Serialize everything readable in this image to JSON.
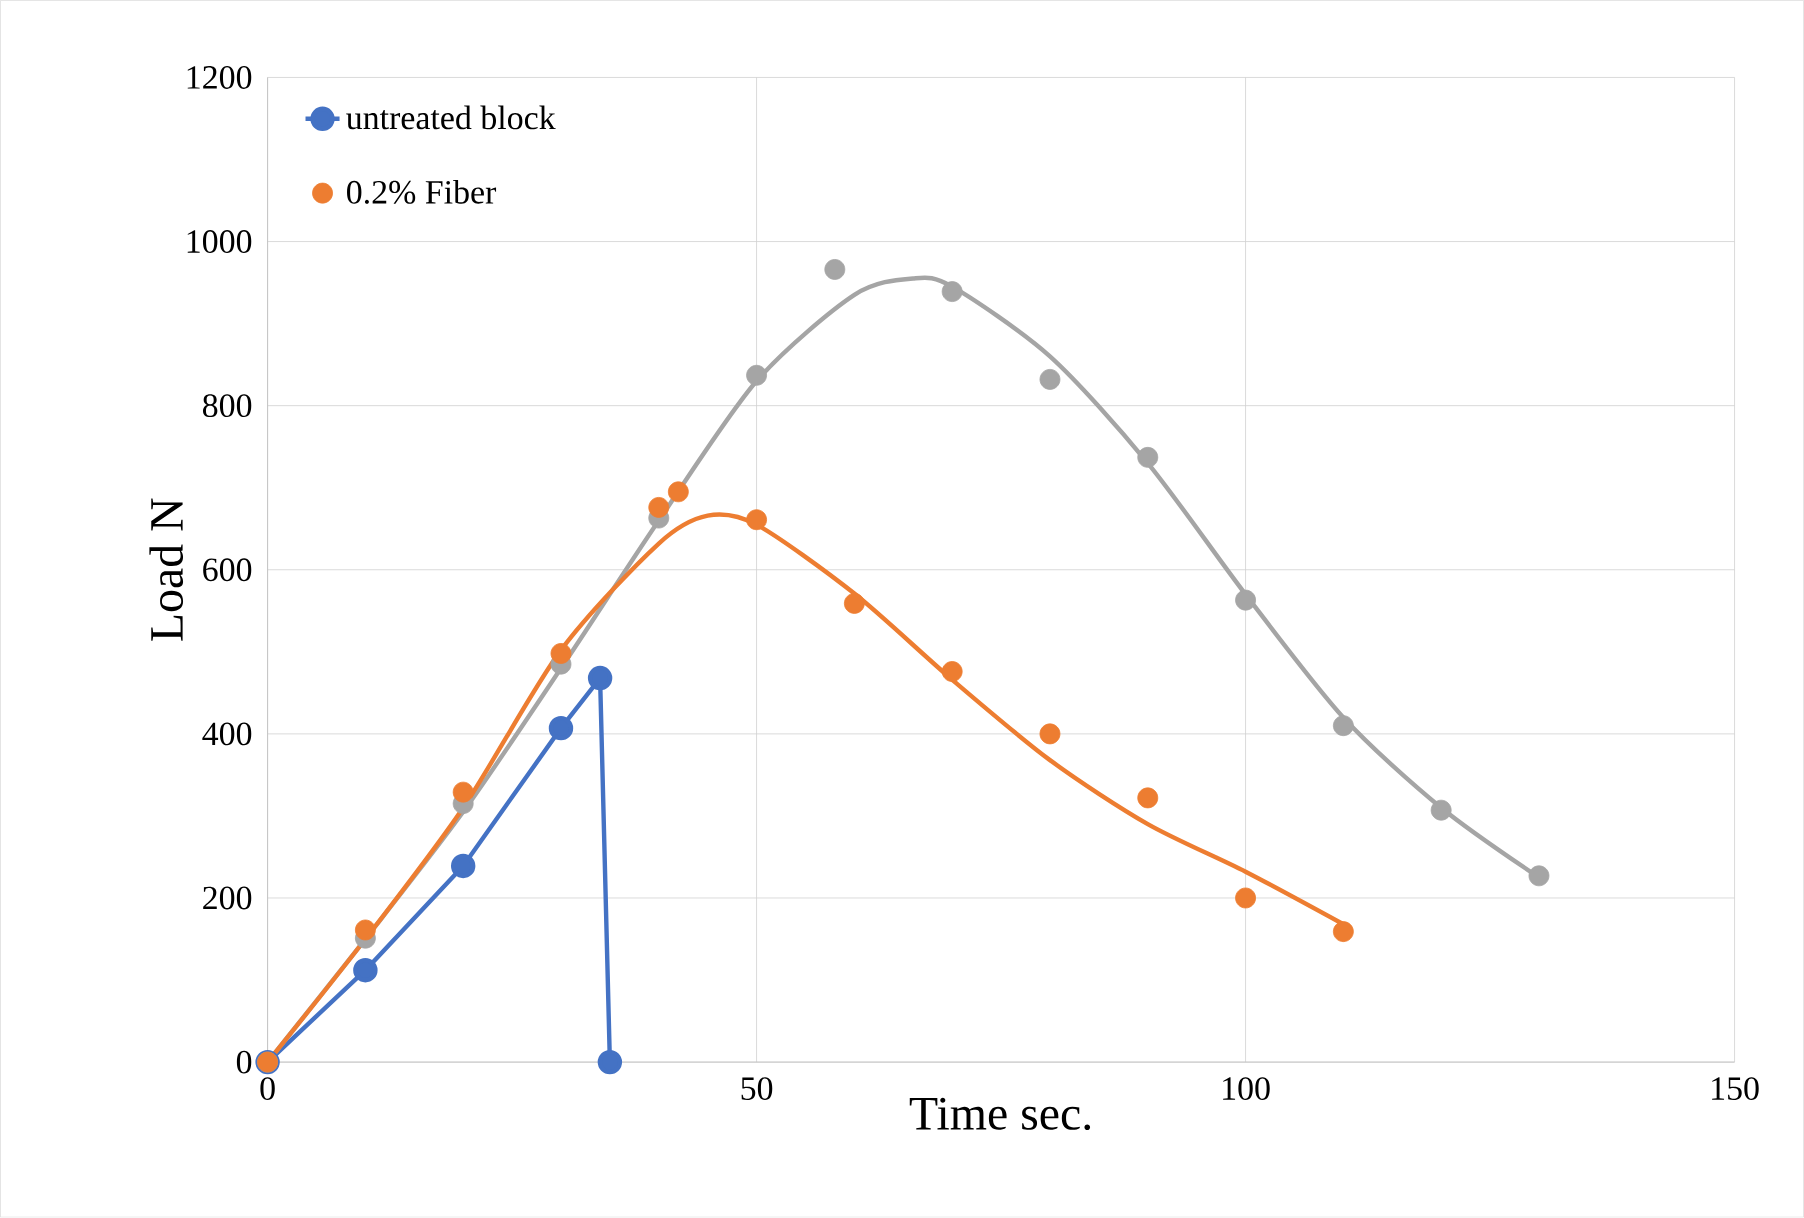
{
  "chart_data": {
    "type": "line",
    "xlabel": "Time sec.",
    "ylabel": "Load N",
    "xlim": [
      0,
      150
    ],
    "xticks": [
      0,
      50,
      100,
      150
    ],
    "ylim": [
      0,
      1200
    ],
    "yticks": [
      0,
      200,
      400,
      600,
      800,
      1000,
      1200
    ],
    "grid": true,
    "legend": "top left",
    "marker": "circle",
    "series": [
      {
        "type": "line",
        "name": "untreated block",
        "color": "#4472c4",
        "x": [
          0,
          10,
          20,
          30,
          34,
          35
        ],
        "values": [
          0,
          112,
          239,
          407,
          468,
          0
        ]
      },
      {
        "type": "scatter",
        "color": "#a5a5a5",
        "x": [
          0,
          10,
          20,
          30,
          40,
          50,
          58,
          70,
          80,
          90,
          100,
          110,
          120,
          130
        ],
        "values": [
          0,
          151,
          315,
          485,
          663,
          837,
          966,
          939,
          832,
          737,
          563,
          410,
          307,
          227
        ]
      },
      {
        "type": "line",
        "marker": "none",
        "color": "#a5a5a5",
        "x": [
          0,
          10,
          20,
          30,
          40,
          50,
          60,
          66,
          70,
          80,
          90,
          100,
          110,
          120,
          130
        ],
        "values": [
          0,
          150,
          305,
          480,
          660,
          830,
          935,
          955,
          945,
          860,
          730,
          570,
          420,
          310,
          225
        ]
      },
      {
        "type": "scatter",
        "name": "0.2% Fiber",
        "color": "#ed7d31",
        "x": [
          0,
          10,
          20,
          30,
          40,
          42,
          50,
          60,
          70,
          80,
          90,
          100,
          110
        ],
        "values": [
          0,
          161,
          329,
          498,
          676,
          695,
          661,
          559,
          476,
          400,
          322,
          200,
          159
        ]
      },
      {
        "type": "line",
        "marker": "none",
        "color": "#ed7d31",
        "x": [
          0,
          10,
          20,
          30,
          40,
          45,
          50,
          60,
          70,
          80,
          90,
          100,
          110
        ],
        "values": [
          0,
          150,
          310,
          502,
          632,
          666,
          655,
          571,
          466,
          368,
          290,
          232,
          168
        ]
      }
    ]
  }
}
